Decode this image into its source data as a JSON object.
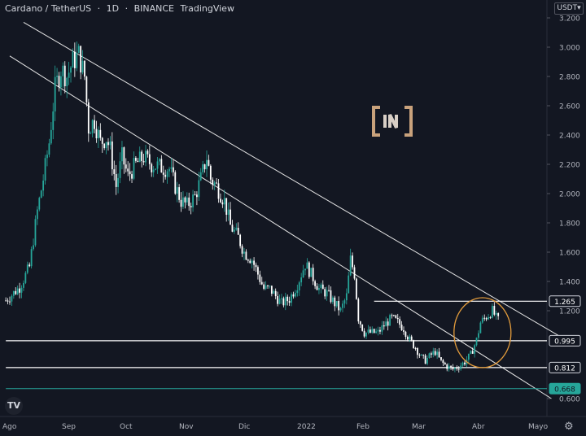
{
  "header": {
    "pair": "Cardano / TetherUS",
    "interval": "1D",
    "exchange": "BINANCE",
    "source": "TradingView"
  },
  "currency_label": "USDT",
  "chart_data": {
    "type": "candlestick",
    "title": "Cardano / TetherUS · 1D · BINANCE",
    "y_axis": {
      "ticks": [
        "3.200",
        "3.000",
        "2.800",
        "2.600",
        "2.400",
        "2.200",
        "2.000",
        "1.800",
        "1.600",
        "1.400",
        "1.200",
        "0.600"
      ],
      "range": [
        0.58,
        3.25
      ]
    },
    "x_axis": {
      "ticks": [
        "Ago",
        "Sep",
        "Oct",
        "Nov",
        "Dic",
        "2022",
        "Feb",
        "Mar",
        "Abr",
        "Mayo"
      ],
      "range": [
        "2021-07-27",
        "2022-05-15"
      ]
    },
    "price_levels": [
      {
        "label": "1.265",
        "value": 1.265,
        "color": "#ffffff",
        "start": "2022-01-30"
      },
      {
        "label": "0.995",
        "value": 0.995,
        "color": "#ffffff",
        "start": "2021-07-27"
      },
      {
        "label": "0.812",
        "value": 0.812,
        "color": "#ffffff",
        "start": "2021-07-27"
      },
      {
        "label": "0.668",
        "value": 0.668,
        "color": "#26a69a",
        "start": "2021-07-27"
      }
    ],
    "trendlines": [
      {
        "from": [
          "2021-08-05",
          3.17
        ],
        "to": [
          "2022-05-10",
          0.98
        ]
      },
      {
        "from": [
          "2021-07-29",
          2.94
        ],
        "to": [
          "2022-04-30",
          0.6
        ]
      }
    ],
    "highlight": {
      "center": [
        "2022-03-26",
        1.05
      ],
      "color": "#e39c3c"
    },
    "candle_path": [
      [
        "2021-07-27",
        1.27
      ],
      [
        "2021-08-03",
        1.36
      ],
      [
        "2021-08-08",
        1.5
      ],
      [
        "2021-08-12",
        1.88
      ],
      [
        "2021-08-15",
        2.1
      ],
      [
        "2021-08-18",
        2.35
      ],
      [
        "2021-08-21",
        2.72
      ],
      [
        "2021-08-24",
        2.85
      ],
      [
        "2021-08-27",
        2.8
      ],
      [
        "2021-08-30",
        2.9
      ],
      [
        "2021-09-02",
        2.95
      ],
      [
        "2021-09-05",
        2.8
      ],
      [
        "2021-09-07",
        2.45
      ],
      [
        "2021-09-10",
        2.5
      ],
      [
        "2021-09-13",
        2.35
      ],
      [
        "2021-09-16",
        2.38
      ],
      [
        "2021-09-18",
        2.3
      ],
      [
        "2021-09-21",
        2.05
      ],
      [
        "2021-09-24",
        2.25
      ],
      [
        "2021-09-27",
        2.12
      ],
      [
        "2021-10-01",
        2.2
      ],
      [
        "2021-10-05",
        2.25
      ],
      [
        "2021-10-09",
        2.2
      ],
      [
        "2021-10-14",
        2.18
      ],
      [
        "2021-10-18",
        2.17
      ],
      [
        "2021-10-21",
        2.05
      ],
      [
        "2021-10-24",
        1.95
      ],
      [
        "2021-10-27",
        1.92
      ],
      [
        "2021-10-31",
        1.98
      ],
      [
        "2021-11-03",
        2.1
      ],
      [
        "2021-11-06",
        2.25
      ],
      [
        "2021-11-08",
        2.1
      ],
      [
        "2021-11-11",
        2.05
      ],
      [
        "2021-11-15",
        1.95
      ],
      [
        "2021-11-18",
        1.78
      ],
      [
        "2021-11-22",
        1.7
      ],
      [
        "2021-11-25",
        1.6
      ],
      [
        "2021-11-29",
        1.55
      ],
      [
        "2021-12-02",
        1.45
      ],
      [
        "2021-12-05",
        1.35
      ],
      [
        "2021-12-08",
        1.35
      ],
      [
        "2021-12-11",
        1.3
      ],
      [
        "2021-12-14",
        1.25
      ],
      [
        "2021-12-18",
        1.28
      ],
      [
        "2021-12-22",
        1.38
      ],
      [
        "2021-12-26",
        1.52
      ],
      [
        "2021-12-29",
        1.45
      ],
      [
        "2022-01-02",
        1.35
      ],
      [
        "2022-01-06",
        1.32
      ],
      [
        "2022-01-10",
        1.25
      ],
      [
        "2022-01-13",
        1.2
      ],
      [
        "2022-01-16",
        1.3
      ],
      [
        "2022-01-18",
        1.55
      ],
      [
        "2022-01-20",
        1.45
      ],
      [
        "2022-01-22",
        1.15
      ],
      [
        "2022-01-25",
        1.05
      ],
      [
        "2022-01-28",
        1.05
      ],
      [
        "2022-02-01",
        1.05
      ],
      [
        "2022-02-04",
        1.1
      ],
      [
        "2022-02-08",
        1.15
      ],
      [
        "2022-02-11",
        1.12
      ],
      [
        "2022-02-14",
        1.08
      ],
      [
        "2022-02-17",
        1.0
      ],
      [
        "2022-02-20",
        0.95
      ],
      [
        "2022-02-23",
        0.88
      ],
      [
        "2022-02-25",
        0.86
      ],
      [
        "2022-02-28",
        0.9
      ],
      [
        "2022-03-02",
        0.92
      ],
      [
        "2022-03-05",
        0.85
      ],
      [
        "2022-03-08",
        0.82
      ],
      [
        "2022-03-11",
        0.8
      ],
      [
        "2022-03-14",
        0.82
      ],
      [
        "2022-03-17",
        0.85
      ],
      [
        "2022-03-20",
        0.9
      ],
      [
        "2022-03-23",
        1.0
      ],
      [
        "2022-03-25",
        1.12
      ],
      [
        "2022-03-28",
        1.16
      ],
      [
        "2022-03-31",
        1.2
      ],
      [
        "2022-04-02",
        1.15
      ],
      [
        "2022-04-04",
        1.12
      ]
    ]
  }
}
